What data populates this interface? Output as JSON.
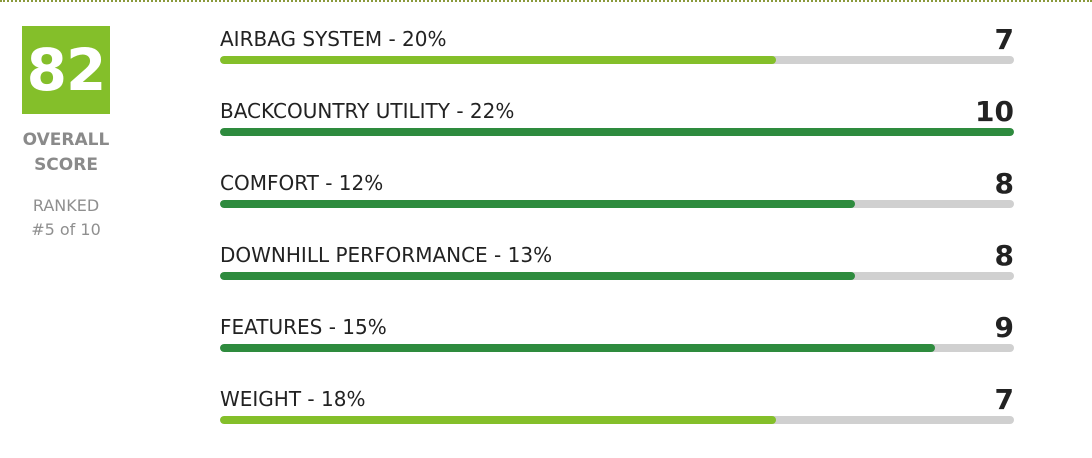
{
  "overall": {
    "score": "82",
    "label_line1": "OVERALL",
    "label_line2": "SCORE",
    "rank_line1": "RANKED",
    "rank_line2": "#5 of 10"
  },
  "colors": {
    "score_box": "#84bf2a",
    "bar_light_green": "#84bf2a",
    "bar_dark_green": "#2e8b3e",
    "bar_track": "#d0d0d0"
  },
  "metrics": [
    {
      "label": "AIRBAG SYSTEM - 20%",
      "score": "7",
      "value": 7,
      "max": 10,
      "color": "#84bf2a"
    },
    {
      "label": "BACKCOUNTRY UTILITY - 22%",
      "score": "10",
      "value": 10,
      "max": 10,
      "color": "#2e8b3e"
    },
    {
      "label": "COMFORT - 12%",
      "score": "8",
      "value": 8,
      "max": 10,
      "color": "#2e8b3e"
    },
    {
      "label": "DOWNHILL PERFORMANCE - 13%",
      "score": "8",
      "value": 8,
      "max": 10,
      "color": "#2e8b3e"
    },
    {
      "label": "FEATURES - 15%",
      "score": "9",
      "value": 9,
      "max": 10,
      "color": "#2e8b3e"
    },
    {
      "label": "WEIGHT - 18%",
      "score": "7",
      "value": 7,
      "max": 10,
      "color": "#84bf2a"
    }
  ]
}
